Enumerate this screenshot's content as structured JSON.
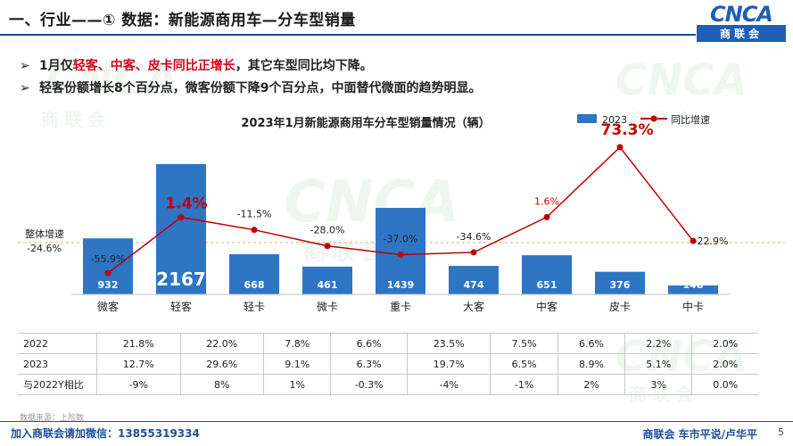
{
  "header": {
    "title": "一、行业——① 数据：新能源商用车—分车型销量",
    "logo_mark": "CNCA",
    "logo_text": "商联会"
  },
  "bullets": [
    {
      "arrow": "➢",
      "prefix": "1月仅",
      "highlight": "轻客、中客、皮卡同比正增长",
      "suffix": "，其它车型同比均下降。"
    },
    {
      "arrow": "➢",
      "prefix": "轻客份额增长8个百分点，微客份额下降9个百分点，中面替代微面的趋势明显。",
      "highlight": "",
      "suffix": ""
    }
  ],
  "watermarks": {
    "mark": "CNCA",
    "text": "商联会"
  },
  "chart_data": {
    "type": "bar",
    "title": "2023年1月新能源商用车分车型销量情况（辆）",
    "categories": [
      "微客",
      "轻客",
      "轻卡",
      "微卡",
      "重卡",
      "大客",
      "中客",
      "皮卡",
      "中卡"
    ],
    "series": [
      {
        "name": "2023",
        "type": "bar",
        "values": [
          932,
          2167,
          668,
          461,
          1439,
          474,
          651,
          376,
          148
        ]
      },
      {
        "name": "同比增速",
        "type": "line",
        "values": [
          -55.9,
          1.4,
          -11.5,
          -28.0,
          -37.0,
          -34.6,
          1.6,
          73.3,
          -22.9
        ]
      }
    ],
    "bar_labels": [
      "932",
      "2167",
      "668",
      "461",
      "1439",
      "474",
      "651",
      "376",
      "148"
    ],
    "line_labels": [
      "-55.9%",
      "1.4%",
      "-11.5%",
      "-28.0%",
      "-37.0%",
      "-34.6%",
      "1.6%",
      "73.3%",
      "-22.9%"
    ],
    "reference_line": {
      "label": "整体增速",
      "value": -24.6,
      "value_label": "-24.6%"
    },
    "legend": [
      "2023",
      "同比增速"
    ],
    "legend_position": "top-right",
    "colors": {
      "bar": "#2e75c4",
      "line": "#c00000",
      "reference": "#f0a868"
    },
    "ylim_bar": [
      0,
      2400
    ],
    "ylim_line": [
      -70,
      90
    ]
  },
  "table": {
    "rows": [
      {
        "label": "2022",
        "values": [
          "21.8%",
          "22.0%",
          "7.8%",
          "6.6%",
          "23.5%",
          "7.5%",
          "6.6%",
          "2.2%",
          "2.0%"
        ]
      },
      {
        "label": "2023",
        "values": [
          "12.7%",
          "29.6%",
          "9.1%",
          "6.3%",
          "19.7%",
          "6.5%",
          "8.9%",
          "5.1%",
          "2.0%"
        ]
      },
      {
        "label": "与2022Y相比",
        "values": [
          "-9%",
          "8%",
          "1%",
          "-0.3%",
          "-4%",
          "-1%",
          "2%",
          "3%",
          "0.0%"
        ]
      }
    ]
  },
  "footer": {
    "source": "数据来源：上险数",
    "contact": "加入商联会请加微信：13855319334",
    "credit": "商联会  车市平说/卢华平",
    "page": "5"
  }
}
